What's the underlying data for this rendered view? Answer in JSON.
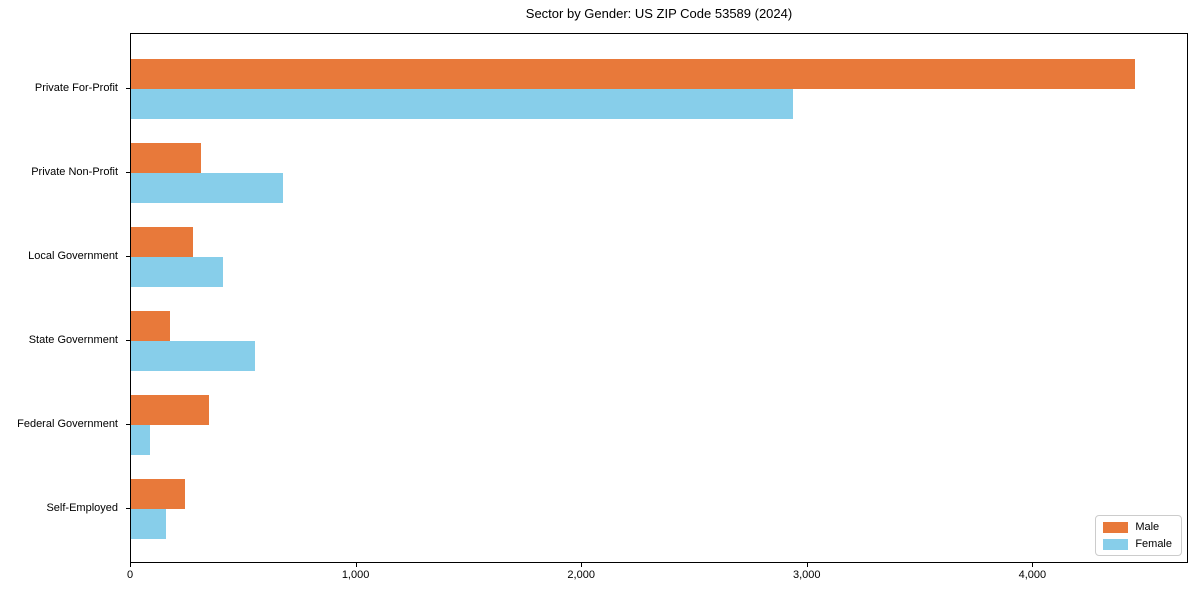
{
  "title": "Sector by Gender: US ZIP Code 53589 (2024)",
  "colors": {
    "male": "#e8793a",
    "female": "#87ceea",
    "axis": "#000000",
    "legend_border": "#cccccc",
    "background": "#ffffff"
  },
  "legend": {
    "items": [
      {
        "label": "Male",
        "color": "#e8793a"
      },
      {
        "label": "Female",
        "color": "#87ceea"
      }
    ],
    "position": "lower right"
  },
  "chart_data": {
    "type": "bar",
    "orientation": "horizontal",
    "title": "Sector by Gender: US ZIP Code 53589 (2024)",
    "categories": [
      "Private For-Profit",
      "Private Non-Profit",
      "Local Government",
      "State Government",
      "Federal Government",
      "Self-Employed"
    ],
    "series": [
      {
        "name": "Male",
        "color": "#e8793a",
        "values": [
          4460,
          310,
          275,
          175,
          345,
          240
        ]
      },
      {
        "name": "Female",
        "color": "#87ceea",
        "values": [
          2940,
          675,
          410,
          550,
          85,
          155
        ]
      }
    ],
    "xlabel": "",
    "ylabel": "",
    "xlim": [
      0,
      4690
    ],
    "x_ticks": [
      0,
      1000,
      2000,
      3000,
      4000
    ],
    "x_tick_labels": [
      "0",
      "1,000",
      "2,000",
      "3,000",
      "4,000"
    ],
    "grid": false,
    "legend_position": "lower right"
  }
}
